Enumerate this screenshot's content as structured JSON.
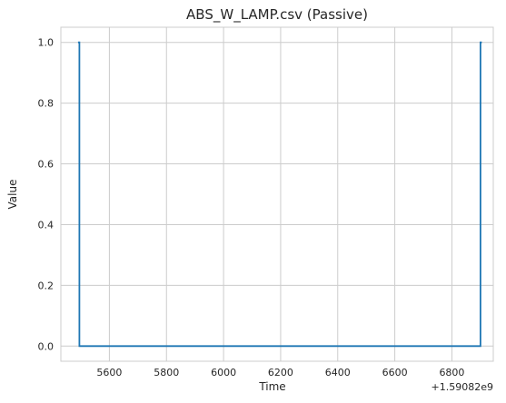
{
  "chart_data": {
    "type": "line",
    "title": "ABS_W_LAMP.csv (Passive)",
    "xlabel": "Time",
    "ylabel": "Value",
    "x_offset_label": "+1.59082e9",
    "x_ticks": [
      5600,
      5800,
      6000,
      6200,
      6400,
      6600,
      6800
    ],
    "y_ticks": [
      "0.0",
      "0.2",
      "0.4",
      "0.6",
      "0.8",
      "1.0"
    ],
    "xlim": [
      5430,
      6945
    ],
    "ylim": [
      -0.05,
      1.05
    ],
    "grid": true,
    "line_color": "#1f77b4",
    "series": [
      {
        "x": [
          5490,
          5495,
          5495,
          6900,
          6900,
          6905
        ],
        "y": [
          1.0,
          1.0,
          0.0,
          0.0,
          1.0,
          1.0
        ],
        "drawstyle": "steps"
      }
    ]
  }
}
